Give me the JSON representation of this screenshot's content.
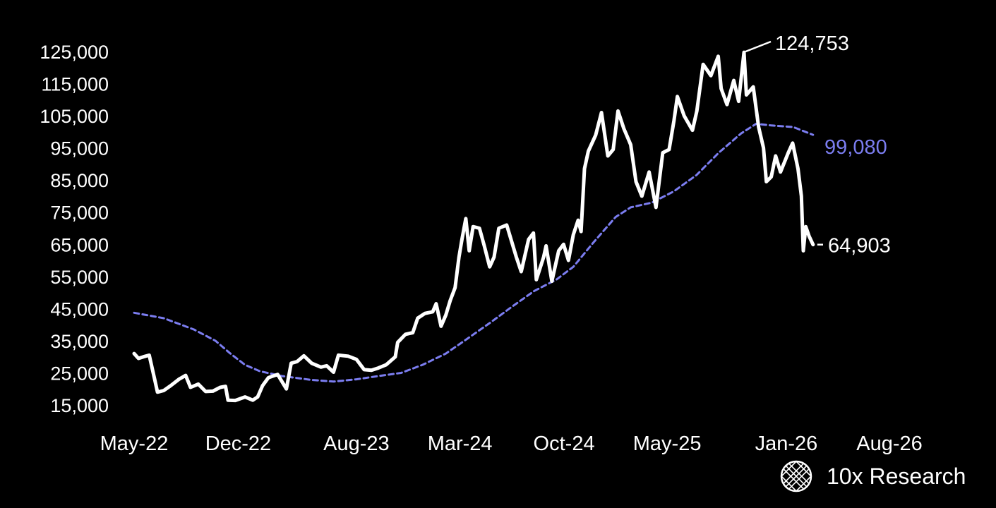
{
  "chart_data": {
    "type": "line",
    "title": "",
    "xlabel": "",
    "ylabel": "",
    "x_ticks": [
      "May-22",
      "Dec-22",
      "Aug-23",
      "Mar-24",
      "Oct-24",
      "May-25",
      "Jan-26",
      "Aug-26"
    ],
    "x_tick_values": [
      "2022-05-01",
      "2022-12-01",
      "2023-08-01",
      "2024-03-01",
      "2024-10-01",
      "2025-05-01",
      "2026-01-01",
      "2026-08-01"
    ],
    "y_ticks": [
      "15,000",
      "25,000",
      "35,000",
      "45,000",
      "55,000",
      "65,000",
      "75,000",
      "85,000",
      "95,000",
      "105,000",
      "115,000",
      "125,000"
    ],
    "y_tick_values": [
      15000,
      25000,
      35000,
      45000,
      55000,
      65000,
      75000,
      85000,
      95000,
      105000,
      115000,
      125000
    ],
    "ylim": [
      15000,
      125000
    ],
    "grid": false,
    "series": [
      {
        "role": "price",
        "color": "#ffffff",
        "style": "solid",
        "points": [
          [
            "2022-05-01",
            31000
          ],
          [
            "2022-05-10",
            29500
          ],
          [
            "2022-05-20",
            30000
          ],
          [
            "2022-06-01",
            30500
          ],
          [
            "2022-06-13",
            22500
          ],
          [
            "2022-06-18",
            19000
          ],
          [
            "2022-07-01",
            19500
          ],
          [
            "2022-07-15",
            21000
          ],
          [
            "2022-08-01",
            23000
          ],
          [
            "2022-08-15",
            24200
          ],
          [
            "2022-08-25",
            20500
          ],
          [
            "2022-09-10",
            21500
          ],
          [
            "2022-09-25",
            19200
          ],
          [
            "2022-10-10",
            19300
          ],
          [
            "2022-10-25",
            20500
          ],
          [
            "2022-11-05",
            20800
          ],
          [
            "2022-11-10",
            16500
          ],
          [
            "2022-11-25",
            16400
          ],
          [
            "2022-12-15",
            17500
          ],
          [
            "2022-12-31",
            16500
          ],
          [
            "2023-01-10",
            17500
          ],
          [
            "2023-01-20",
            21000
          ],
          [
            "2023-02-01",
            23500
          ],
          [
            "2023-02-20",
            24500
          ],
          [
            "2023-03-10",
            20000
          ],
          [
            "2023-03-20",
            28000
          ],
          [
            "2023-04-01",
            28500
          ],
          [
            "2023-04-15",
            30300
          ],
          [
            "2023-05-01",
            28000
          ],
          [
            "2023-05-20",
            26800
          ],
          [
            "2023-06-01",
            27200
          ],
          [
            "2023-06-15",
            25200
          ],
          [
            "2023-06-25",
            30500
          ],
          [
            "2023-07-15",
            30200
          ],
          [
            "2023-08-01",
            29200
          ],
          [
            "2023-08-17",
            26000
          ],
          [
            "2023-09-01",
            25800
          ],
          [
            "2023-09-15",
            26500
          ],
          [
            "2023-10-01",
            27500
          ],
          [
            "2023-10-20",
            30000
          ],
          [
            "2023-10-25",
            34500
          ],
          [
            "2023-11-10",
            37000
          ],
          [
            "2023-11-25",
            37500
          ],
          [
            "2023-12-05",
            42000
          ],
          [
            "2023-12-20",
            43500
          ],
          [
            "2024-01-05",
            44000
          ],
          [
            "2024-01-12",
            46500
          ],
          [
            "2024-01-22",
            39500
          ],
          [
            "2024-02-01",
            43000
          ],
          [
            "2024-02-10",
            47500
          ],
          [
            "2024-02-20",
            51500
          ],
          [
            "2024-02-28",
            61000
          ],
          [
            "2024-03-05",
            66500
          ],
          [
            "2024-03-13",
            73000
          ],
          [
            "2024-03-20",
            63000
          ],
          [
            "2024-03-28",
            70500
          ],
          [
            "2024-04-10",
            70000
          ],
          [
            "2024-04-20",
            64500
          ],
          [
            "2024-05-01",
            58000
          ],
          [
            "2024-05-10",
            61000
          ],
          [
            "2024-05-20",
            70000
          ],
          [
            "2024-06-05",
            71000
          ],
          [
            "2024-06-25",
            61000
          ],
          [
            "2024-07-05",
            56500
          ],
          [
            "2024-07-20",
            66500
          ],
          [
            "2024-07-30",
            68500
          ],
          [
            "2024-08-05",
            54000
          ],
          [
            "2024-08-20",
            61000
          ],
          [
            "2024-08-25",
            64500
          ],
          [
            "2024-09-06",
            53500
          ],
          [
            "2024-09-20",
            63000
          ],
          [
            "2024-09-30",
            65000
          ],
          [
            "2024-10-10",
            60000
          ],
          [
            "2024-10-20",
            68000
          ],
          [
            "2024-10-30",
            72500
          ],
          [
            "2024-11-05",
            69000
          ],
          [
            "2024-11-12",
            88500
          ],
          [
            "2024-11-20",
            94000
          ],
          [
            "2024-12-05",
            99000
          ],
          [
            "2024-12-17",
            106000
          ],
          [
            "2024-12-30",
            92500
          ],
          [
            "2025-01-10",
            94500
          ],
          [
            "2025-01-20",
            106500
          ],
          [
            "2025-02-01",
            101000
          ],
          [
            "2025-02-15",
            96000
          ],
          [
            "2025-02-26",
            84500
          ],
          [
            "2025-03-10",
            80000
          ],
          [
            "2025-03-25",
            87500
          ],
          [
            "2025-04-08",
            76500
          ],
          [
            "2025-04-22",
            93500
          ],
          [
            "2025-05-05",
            94500
          ],
          [
            "2025-05-15",
            103500
          ],
          [
            "2025-05-22",
            111000
          ],
          [
            "2025-06-05",
            105000
          ],
          [
            "2025-06-22",
            100500
          ],
          [
            "2025-07-01",
            106500
          ],
          [
            "2025-07-14",
            121000
          ],
          [
            "2025-07-30",
            117500
          ],
          [
            "2025-08-14",
            123500
          ],
          [
            "2025-08-20",
            113500
          ],
          [
            "2025-09-01",
            108500
          ],
          [
            "2025-09-15",
            116000
          ],
          [
            "2025-09-25",
            109500
          ],
          [
            "2025-10-06",
            124753
          ],
          [
            "2025-10-11",
            111500
          ],
          [
            "2025-10-25",
            114000
          ],
          [
            "2025-11-05",
            101500
          ],
          [
            "2025-11-15",
            95000
          ],
          [
            "2025-11-21",
            84500
          ],
          [
            "2025-12-01",
            86000
          ],
          [
            "2025-12-10",
            92500
          ],
          [
            "2025-12-20",
            87500
          ],
          [
            "2026-01-05",
            93500
          ],
          [
            "2026-01-14",
            96500
          ],
          [
            "2026-01-25",
            88500
          ],
          [
            "2026-02-01",
            80000
          ],
          [
            "2026-02-05",
            63000
          ],
          [
            "2026-02-10",
            70500
          ],
          [
            "2026-02-17",
            67500
          ],
          [
            "2026-02-25",
            64903
          ]
        ]
      },
      {
        "role": "moving-average",
        "color": "#7b7df0",
        "style": "dashed",
        "points": [
          [
            "2022-05-01",
            43700
          ],
          [
            "2022-07-01",
            42000
          ],
          [
            "2022-09-01",
            38500
          ],
          [
            "2022-10-15",
            35000
          ],
          [
            "2022-11-15",
            31000
          ],
          [
            "2022-12-15",
            27500
          ],
          [
            "2023-01-15",
            25500
          ],
          [
            "2023-03-01",
            24000
          ],
          [
            "2023-05-01",
            22800
          ],
          [
            "2023-06-15",
            22300
          ],
          [
            "2023-08-01",
            23000
          ],
          [
            "2023-09-15",
            24000
          ],
          [
            "2023-11-01",
            25000
          ],
          [
            "2023-12-15",
            27500
          ],
          [
            "2024-02-01",
            31000
          ],
          [
            "2024-03-15",
            35500
          ],
          [
            "2024-05-01",
            40500
          ],
          [
            "2024-06-15",
            45500
          ],
          [
            "2024-08-01",
            50500
          ],
          [
            "2024-09-15",
            54000
          ],
          [
            "2024-10-20",
            58000
          ],
          [
            "2024-11-30",
            65500
          ],
          [
            "2025-01-15",
            73500
          ],
          [
            "2025-02-15",
            76500
          ],
          [
            "2025-03-31",
            78000
          ],
          [
            "2025-05-15",
            81500
          ],
          [
            "2025-06-30",
            86500
          ],
          [
            "2025-08-15",
            93500
          ],
          [
            "2025-09-30",
            99500
          ],
          [
            "2025-10-31",
            102500
          ],
          [
            "2025-12-01",
            102000
          ],
          [
            "2026-01-15",
            101500
          ],
          [
            "2026-02-25",
            99080
          ]
        ]
      }
    ],
    "annotations": [
      {
        "text": "124,753",
        "color": "#ffffff",
        "date": "2025-10-06",
        "value": 124753
      },
      {
        "text": "99,080",
        "color": "#7b7df0",
        "date": "2026-02-25",
        "value": 99080
      },
      {
        "text": "64,903",
        "color": "#ffffff",
        "date": "2026-02-25",
        "value": 64903
      }
    ]
  },
  "brand": {
    "name": "10x Research",
    "icon": "globe-logo-icon"
  }
}
